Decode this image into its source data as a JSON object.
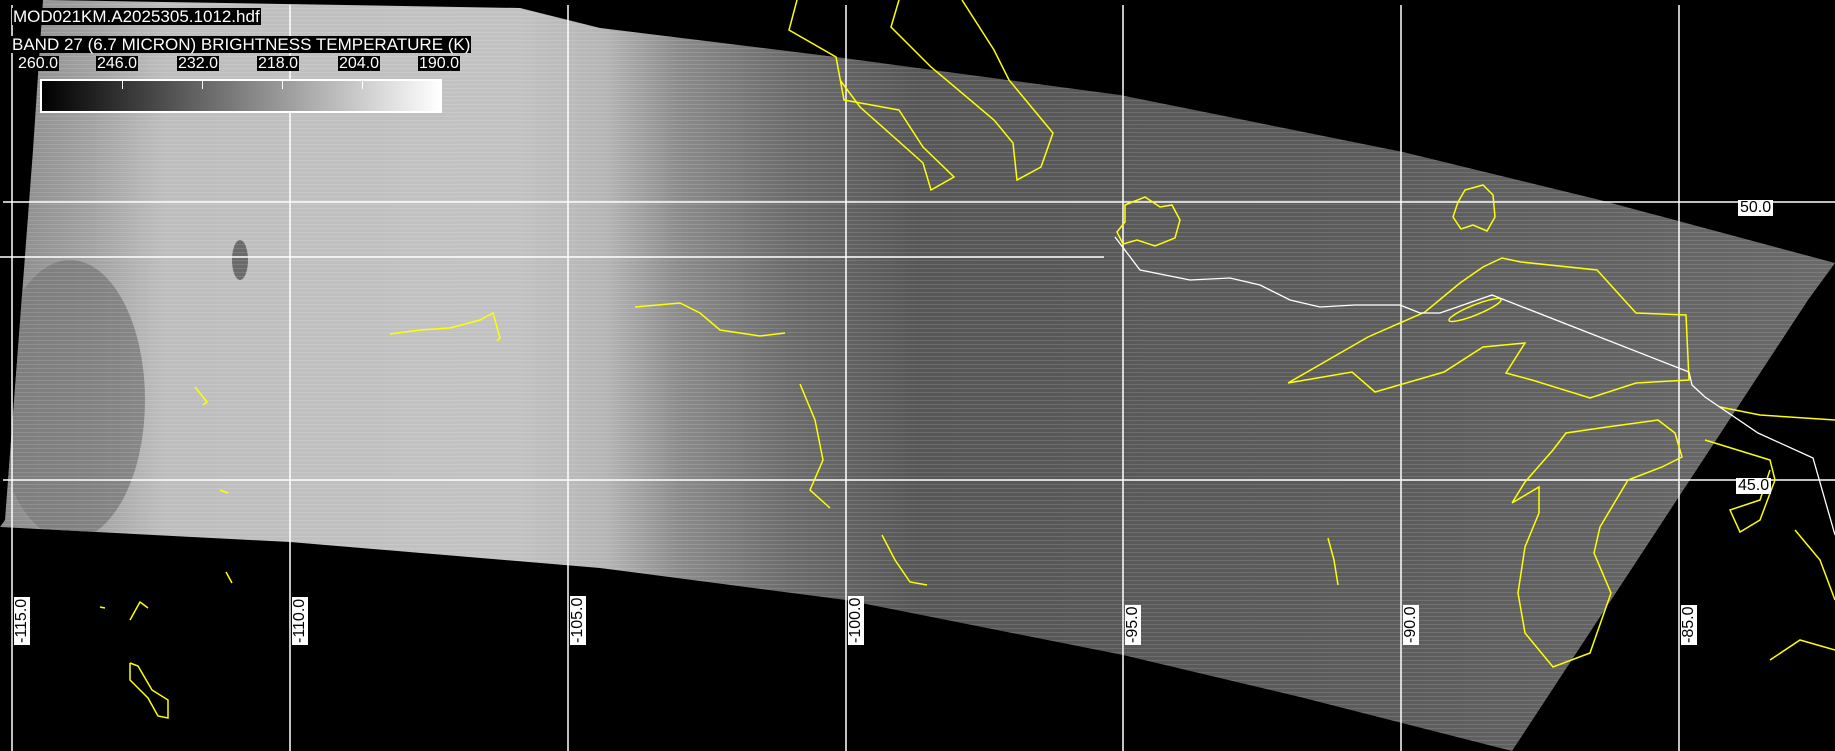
{
  "filename": "MOD021KM.A2025305.1012.hdf",
  "band_title": "BAND 27 (6.7 MICRON) BRIGHTNESS TEMPERATURE (K)",
  "colorbar": {
    "ticks": [
      "260.0",
      "246.0",
      "232.0",
      "218.0",
      "204.0",
      "190.0"
    ],
    "range_k": [
      260,
      190
    ],
    "colormap": "grayscale, black (warm) to white (cold)"
  },
  "grid": {
    "longitude_labels": [
      "-115.0",
      "-110.0",
      "-105.0",
      "-100.0",
      "-95.0",
      "-90.0",
      "-85.0"
    ],
    "latitude_labels": [
      "50.0",
      "45.0"
    ],
    "grid_color": "#ffffff"
  },
  "colors": {
    "coastline": "#ffff00",
    "border": "#ffffff",
    "background": "#000000"
  }
}
